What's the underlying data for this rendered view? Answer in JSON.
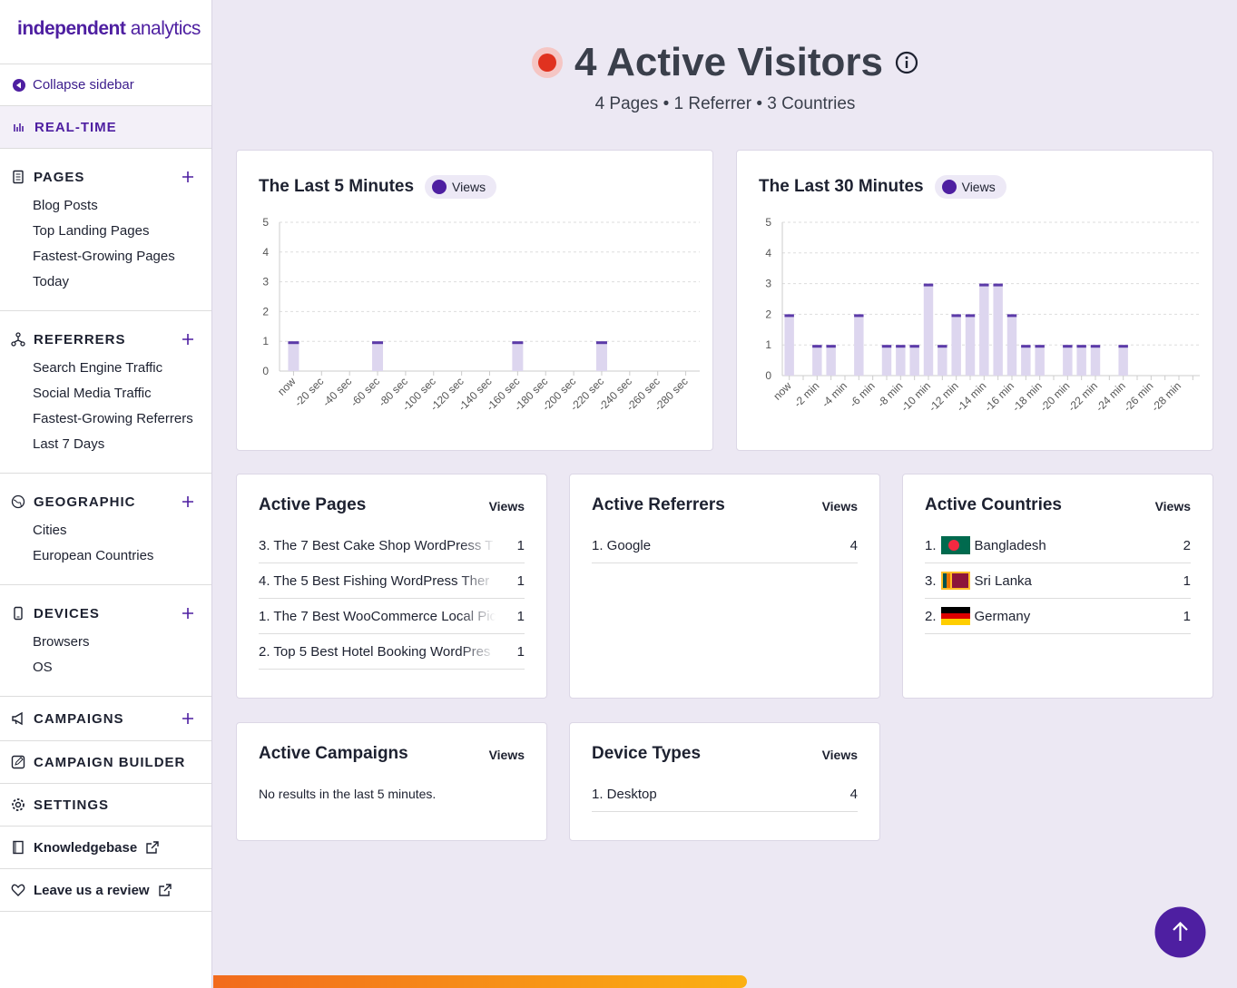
{
  "sidebar": {
    "logo_bold": "independent",
    "logo_light": "analytics",
    "collapse": "Collapse sidebar",
    "realtime": "REAL-TIME",
    "sections": [
      {
        "title": "PAGES",
        "items": [
          "Blog Posts",
          "Top Landing Pages",
          "Fastest-Growing Pages",
          "Today"
        ]
      },
      {
        "title": "REFERRERS",
        "items": [
          "Search Engine Traffic",
          "Social Media Traffic",
          "Fastest-Growing Referrers",
          "Last 7 Days"
        ]
      },
      {
        "title": "GEOGRAPHIC",
        "items": [
          "Cities",
          "European Countries"
        ]
      },
      {
        "title": "DEVICES",
        "items": [
          "Browsers",
          "OS"
        ]
      },
      {
        "title": "CAMPAIGNS",
        "items": []
      }
    ],
    "campaign_builder": "CAMPAIGN BUILDER",
    "settings": "SETTINGS",
    "knowledgebase": "Knowledgebase",
    "review": "Leave us a review"
  },
  "header": {
    "title": "4 Active Visitors",
    "summary": "4 Pages • 1 Referrer • 3 Countries"
  },
  "chart_data": [
    {
      "type": "bar",
      "title": "The Last 5 Minutes",
      "categories": [
        "now",
        "-20 sec",
        "-40 sec",
        "-60 sec",
        "-80 sec",
        "-100 sec",
        "-120 sec",
        "-140 sec",
        "-160 sec",
        "-180 sec",
        "-200 sec",
        "-220 sec",
        "-240 sec",
        "-260 sec",
        "-280 sec"
      ],
      "series": [
        {
          "name": "Views",
          "color": "#5b3aa8",
          "values": [
            1,
            0,
            0,
            1,
            0,
            0,
            0,
            0,
            1,
            0,
            0,
            1,
            0,
            0,
            0
          ]
        }
      ],
      "ylim": [
        0,
        5
      ],
      "yticks": [
        0,
        1,
        2,
        3,
        4,
        5
      ],
      "grid": true
    },
    {
      "type": "bar",
      "title": "The Last 30 Minutes",
      "categories": [
        "now",
        null,
        "-2 min",
        null,
        "-4 min",
        null,
        "-6 min",
        null,
        "-8 min",
        null,
        "-10 min",
        null,
        "-12 min",
        null,
        "-14 min",
        null,
        "-16 min",
        null,
        "-18 min",
        null,
        "-20 min",
        null,
        "-22 min",
        null,
        "-24 min",
        null,
        "-26 min",
        null,
        "-28 min",
        null
      ],
      "series": [
        {
          "name": "Views",
          "color": "#5b3aa8",
          "values": [
            2,
            0,
            1,
            1,
            0,
            2,
            0,
            1,
            1,
            1,
            3,
            1,
            2,
            2,
            3,
            3,
            2,
            1,
            1,
            0,
            1,
            1,
            1,
            0,
            1,
            0,
            0,
            0,
            0,
            0
          ]
        }
      ],
      "ylim": [
        0,
        5
      ],
      "yticks": [
        0,
        1,
        2,
        3,
        4,
        5
      ],
      "grid": true
    }
  ],
  "panels": [
    {
      "title": "Active Pages",
      "column": "Views",
      "rows": [
        {
          "label": "3. The 7 Best Cake Shop WordPress T",
          "value": 1
        },
        {
          "label": "4. The 5 Best Fishing WordPress Ther",
          "value": 1
        },
        {
          "label": "1. The 7 Best WooCommerce Local Pic",
          "value": 1
        },
        {
          "label": "2. Top 5 Best Hotel Booking WordPres",
          "value": 1
        }
      ]
    },
    {
      "title": "Active Referrers",
      "column": "Views",
      "rows": [
        {
          "label": "1. Google",
          "value": 4
        }
      ]
    },
    {
      "title": "Active Countries",
      "column": "Views",
      "rows": [
        {
          "rank": "1.",
          "label": "Bangladesh",
          "value": 2
        },
        {
          "rank": "3.",
          "label": "Sri Lanka",
          "value": 1
        },
        {
          "rank": "2.",
          "label": "Germany",
          "value": 1
        }
      ]
    },
    {
      "title": "Active Campaigns",
      "column": "Views",
      "empty": "No results in the last 5 minutes.",
      "rows": []
    },
    {
      "title": "Device Types",
      "column": "Views",
      "rows": [
        {
          "label": "1. Desktop",
          "value": 4
        }
      ]
    }
  ]
}
